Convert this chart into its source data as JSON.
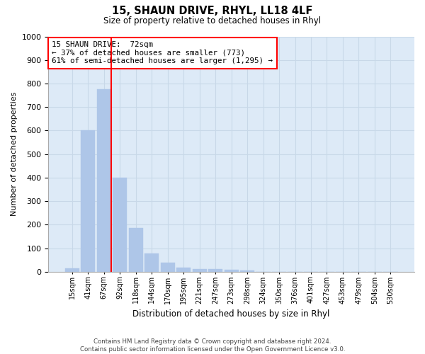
{
  "title1": "15, SHAUN DRIVE, RHYL, LL18 4LF",
  "title2": "Size of property relative to detached houses in Rhyl",
  "xlabel": "Distribution of detached houses by size in Rhyl",
  "ylabel": "Number of detached properties",
  "footnote": "Contains HM Land Registry data © Crown copyright and database right 2024.\nContains public sector information licensed under the Open Government Licence v3.0.",
  "categories": [
    "15sqm",
    "41sqm",
    "67sqm",
    "92sqm",
    "118sqm",
    "144sqm",
    "170sqm",
    "195sqm",
    "221sqm",
    "247sqm",
    "273sqm",
    "298sqm",
    "324sqm",
    "350sqm",
    "376sqm",
    "401sqm",
    "427sqm",
    "453sqm",
    "479sqm",
    "504sqm",
    "530sqm"
  ],
  "values": [
    15,
    600,
    775,
    400,
    185,
    78,
    37,
    17,
    12,
    12,
    8,
    5,
    0,
    0,
    0,
    0,
    0,
    0,
    0,
    0,
    0
  ],
  "bar_color": "#aec6e8",
  "grid_color": "#c8d8e8",
  "background_color": "#ddeaf7",
  "vline_color": "red",
  "vline_x_index": 2,
  "annotation_text": "15 SHAUN DRIVE:  72sqm\n← 37% of detached houses are smaller (773)\n61% of semi-detached houses are larger (1,295) →",
  "ylim": [
    0,
    1000
  ],
  "yticks": [
    0,
    100,
    200,
    300,
    400,
    500,
    600,
    700,
    800,
    900,
    1000
  ]
}
